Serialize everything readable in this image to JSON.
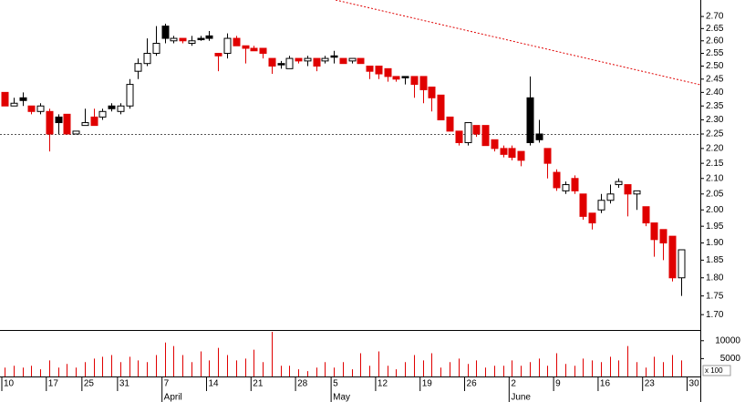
{
  "chart_data": {
    "type": "candlestick",
    "yscale": "log",
    "ylim": [
      1.66,
      2.77
    ],
    "yticks": [
      {
        "value": 2.7,
        "label": "2.70"
      },
      2.65,
      {
        "value": 2.6,
        "label": "2.60"
      },
      2.55,
      {
        "value": 2.5,
        "label": "2.50"
      },
      2.45,
      {
        "value": 2.4,
        "label": "2.40"
      },
      2.35,
      {
        "value": 2.3,
        "label": "2.30"
      },
      2.25,
      {
        "value": 2.2,
        "label": "2.20"
      },
      2.15,
      {
        "value": 2.1,
        "label": "2.10"
      },
      2.05,
      {
        "value": 2.0,
        "label": "2.00"
      },
      1.95,
      {
        "value": 1.9,
        "label": "1.90"
      },
      1.85,
      {
        "value": 1.8,
        "label": "1.80"
      },
      1.75,
      {
        "value": 1.7,
        "label": "1.70"
      }
    ],
    "categories": [
      "10",
      null,
      null,
      null,
      null,
      "17",
      null,
      null,
      null,
      "25",
      null,
      null,
      null,
      "31",
      null,
      null,
      null,
      null,
      "7",
      null,
      null,
      null,
      null,
      "14",
      null,
      null,
      null,
      null,
      "21",
      null,
      null,
      null,
      null,
      "28",
      null,
      null,
      null,
      "5",
      null,
      null,
      null,
      null,
      "12",
      null,
      null,
      null,
      null,
      "19",
      null,
      null,
      null,
      null,
      "26",
      null,
      null,
      null,
      null,
      "2",
      null,
      null,
      null,
      null,
      "9",
      null,
      null,
      null,
      null,
      "16",
      null,
      null,
      null,
      null,
      "23",
      null,
      null,
      null,
      null,
      "30"
    ],
    "month_labels": [
      null,
      null,
      null,
      null,
      null,
      null,
      null,
      null,
      null,
      null,
      null,
      null,
      null,
      null,
      null,
      null,
      null,
      null,
      "April",
      null,
      null,
      null,
      null,
      null,
      null,
      null,
      null,
      null,
      null,
      null,
      null,
      null,
      null,
      null,
      null,
      null,
      null,
      "May",
      null,
      null,
      null,
      null,
      null,
      null,
      null,
      null,
      null,
      null,
      null,
      null,
      null,
      null,
      null,
      null,
      null,
      null,
      null,
      "June",
      null,
      null,
      null,
      null,
      null,
      null,
      null,
      null,
      null,
      null,
      null,
      null,
      null,
      null,
      null,
      null,
      null,
      null,
      null,
      null
    ],
    "open": [
      2.4,
      2.35,
      2.38,
      2.35,
      2.33,
      2.33,
      2.31,
      2.32,
      2.25,
      2.28,
      2.31,
      2.31,
      2.35,
      2.33,
      2.35,
      2.48,
      2.51,
      2.55,
      2.66,
      2.6,
      2.61,
      2.59,
      2.61,
      2.62,
      2.55,
      2.55,
      2.61,
      2.58,
      2.57,
      2.57,
      2.53,
      2.51,
      2.49,
      2.53,
      2.52,
      2.53,
      2.52,
      2.54,
      2.53,
      2.52,
      2.53,
      2.5,
      2.5,
      2.49,
      2.46,
      2.46,
      2.46,
      2.46,
      2.42,
      2.39,
      2.31,
      2.26,
      2.22,
      2.28,
      2.28,
      2.23,
      2.2,
      2.2,
      2.19,
      2.38,
      2.25,
      2.2,
      2.12,
      2.06,
      2.1,
      2.05,
      1.99,
      2.0,
      2.03,
      2.08,
      2.08,
      2.05,
      2.01,
      1.96,
      1.94,
      1.92,
      1.8,
      null
    ],
    "high": [
      2.4,
      2.38,
      2.4,
      2.35,
      2.36,
      2.34,
      2.32,
      2.32,
      2.26,
      2.34,
      2.34,
      2.34,
      2.36,
      2.36,
      2.45,
      2.53,
      2.61,
      2.66,
      2.67,
      2.62,
      2.61,
      2.62,
      2.62,
      2.64,
      2.55,
      2.63,
      2.62,
      2.58,
      2.58,
      2.57,
      2.53,
      2.52,
      2.54,
      2.53,
      2.54,
      2.53,
      2.54,
      2.56,
      2.53,
      2.53,
      2.53,
      2.5,
      2.5,
      2.49,
      2.46,
      2.46,
      2.46,
      2.46,
      2.42,
      2.39,
      2.31,
      2.26,
      2.29,
      2.28,
      2.28,
      2.23,
      2.21,
      2.21,
      2.19,
      2.46,
      2.3,
      2.2,
      2.13,
      2.09,
      2.11,
      2.05,
      1.99,
      2.05,
      2.08,
      2.1,
      2.08,
      2.06,
      2.01,
      1.96,
      1.94,
      1.92,
      1.88,
      null
    ],
    "low": [
      2.35,
      2.35,
      2.35,
      2.32,
      2.32,
      2.19,
      2.25,
      2.25,
      2.25,
      2.28,
      2.28,
      2.3,
      2.33,
      2.32,
      2.34,
      2.45,
      2.5,
      2.54,
      2.59,
      2.59,
      2.59,
      2.58,
      2.6,
      2.6,
      2.48,
      2.53,
      2.58,
      2.51,
      2.56,
      2.53,
      2.47,
      2.49,
      2.49,
      2.51,
      2.5,
      2.48,
      2.51,
      2.51,
      2.51,
      2.51,
      2.51,
      2.45,
      2.45,
      2.44,
      2.44,
      2.43,
      2.38,
      2.36,
      2.33,
      2.3,
      2.26,
      2.21,
      2.21,
      2.24,
      2.21,
      2.19,
      2.17,
      2.16,
      2.14,
      2.21,
      2.22,
      2.1,
      2.06,
      2.05,
      2.05,
      1.97,
      1.94,
      1.99,
      2.02,
      2.07,
      1.98,
      2.0,
      1.95,
      1.86,
      1.85,
      1.79,
      1.75,
      null
    ],
    "close": [
      2.35,
      2.36,
      2.37,
      2.33,
      2.35,
      2.25,
      2.29,
      2.25,
      2.26,
      2.29,
      2.28,
      2.33,
      2.34,
      2.35,
      2.43,
      2.51,
      2.55,
      2.59,
      2.61,
      2.61,
      2.6,
      2.6,
      2.605,
      2.61,
      2.54,
      2.61,
      2.58,
      2.57,
      2.56,
      2.55,
      2.5,
      2.505,
      2.53,
      2.52,
      2.53,
      2.5,
      2.53,
      2.535,
      2.51,
      2.53,
      2.51,
      2.48,
      2.47,
      2.46,
      2.45,
      2.455,
      2.43,
      2.41,
      2.38,
      2.3,
      2.26,
      2.22,
      2.29,
      2.25,
      2.21,
      2.2,
      2.18,
      2.17,
      2.16,
      2.22,
      2.23,
      2.15,
      2.07,
      2.08,
      2.06,
      1.98,
      1.96,
      2.03,
      2.05,
      2.09,
      2.05,
      2.06,
      1.96,
      1.91,
      1.9,
      1.8,
      1.88,
      null
    ],
    "up_color": "#ffffff",
    "down_color": "#e00000",
    "down_higher_color": "#000000",
    "reference_line": 2.25,
    "volume": [
      2500,
      3000,
      2500,
      3000,
      2000,
      4500,
      2500,
      3500,
      2500,
      4000,
      5000,
      5500,
      6000,
      4000,
      5500,
      4500,
      4000,
      6000,
      9500,
      8500,
      6000,
      4000,
      7000,
      4500,
      8000,
      6000,
      4500,
      5000,
      7500,
      4000,
      12500,
      3000,
      3000,
      2000,
      1500,
      2500,
      4000,
      2500,
      4000,
      2000,
      6500,
      3000,
      7000,
      3000,
      2000,
      4000,
      6000,
      4500,
      6500,
      2500,
      4000,
      5000,
      3500,
      4500,
      2500,
      3000,
      3000,
      4500,
      3000,
      4000,
      5000,
      3000,
      6500,
      3500,
      3000,
      5000,
      4500,
      4000,
      5500,
      4500,
      8500,
      4000,
      2500,
      5500,
      4000,
      6000,
      4500,
      null
    ],
    "volume_color": "#e00000",
    "volume_ylim": [
      0,
      13000
    ],
    "volume_yticks": [
      10000,
      5000
    ],
    "volume_unit_label": "x 100"
  }
}
